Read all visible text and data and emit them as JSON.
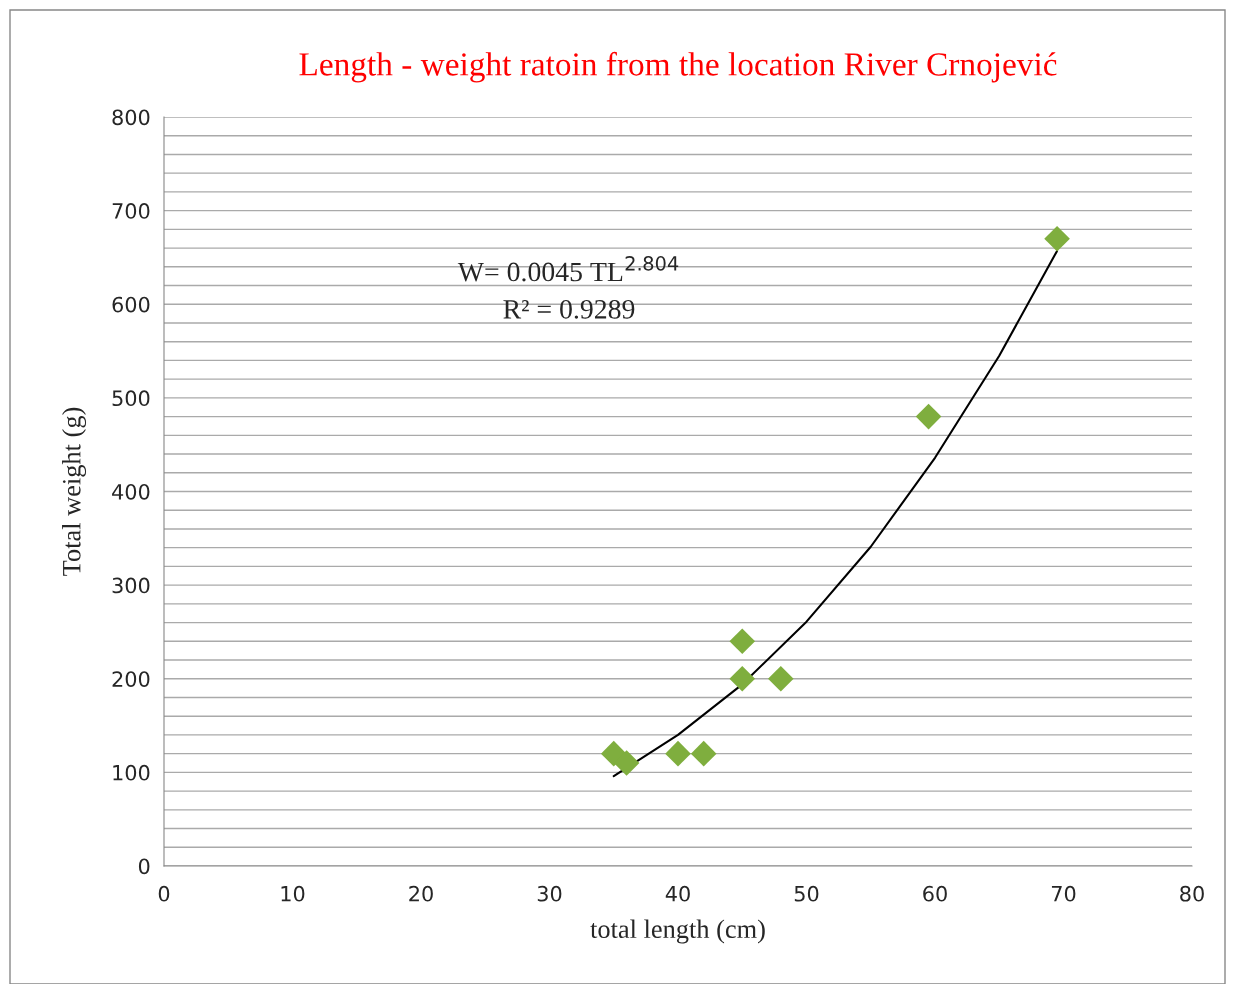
{
  "chart_data": {
    "type": "scatter",
    "title": "Length - weight ratoin from the location River Crnojević",
    "xlabel": "total length (cm)",
    "ylabel": "Total weight (g)",
    "series": [
      {
        "color": "#7fae3e",
        "marker": "diamond",
        "x": [
          35,
          36,
          40,
          42,
          45,
          45,
          48,
          59.5,
          69.5
        ],
        "values": [
          120,
          110,
          120,
          120,
          240,
          200,
          200,
          480,
          670
        ]
      },
      {
        "type": "line",
        "color": "#000000",
        "marker": "none",
        "line_style": "solid",
        "x": [
          35,
          40,
          45,
          50,
          55,
          60,
          65,
          69.5
        ],
        "values": [
          96,
          140,
          194,
          261,
          341,
          436,
          545,
          657
        ]
      }
    ],
    "xlim": [
      0,
      80
    ],
    "xticks": [
      0,
      10,
      20,
      30,
      40,
      50,
      60,
      70,
      80
    ],
    "ylim": [
      0,
      800
    ],
    "yticks": [
      0,
      {
        "value": 20,
        "label": null
      },
      {
        "value": 40,
        "label": null
      },
      {
        "value": 60,
        "label": null
      },
      {
        "value": 80,
        "label": null
      },
      100,
      {
        "value": 120,
        "label": null
      },
      {
        "value": 140,
        "label": null
      },
      {
        "value": 160,
        "label": null
      },
      {
        "value": 180,
        "label": null
      },
      200,
      {
        "value": 220,
        "label": null
      },
      {
        "value": 240,
        "label": null
      },
      {
        "value": 260,
        "label": null
      },
      {
        "value": 280,
        "label": null
      },
      300,
      {
        "value": 320,
        "label": null
      },
      {
        "value": 340,
        "label": null
      },
      {
        "value": 360,
        "label": null
      },
      {
        "value": 380,
        "label": null
      },
      400,
      {
        "value": 420,
        "label": null
      },
      {
        "value": 440,
        "label": null
      },
      {
        "value": 460,
        "label": null
      },
      {
        "value": 480,
        "label": null
      },
      500,
      {
        "value": 520,
        "label": null
      },
      {
        "value": 540,
        "label": null
      },
      {
        "value": 560,
        "label": null
      },
      {
        "value": 580,
        "label": null
      },
      600,
      {
        "value": 620,
        "label": null
      },
      {
        "value": 640,
        "label": null
      },
      {
        "value": 660,
        "label": null
      },
      {
        "value": 680,
        "label": null
      },
      700,
      {
        "value": 720,
        "label": null
      },
      {
        "value": 740,
        "label": null
      },
      {
        "value": 760,
        "label": null
      },
      {
        "value": 780,
        "label": null
      },
      800
    ],
    "grid": "y",
    "legend": false,
    "annotations": [
      "W= 0.0045 TL$^{2.804}$",
      "R² = 0.9289"
    ]
  }
}
